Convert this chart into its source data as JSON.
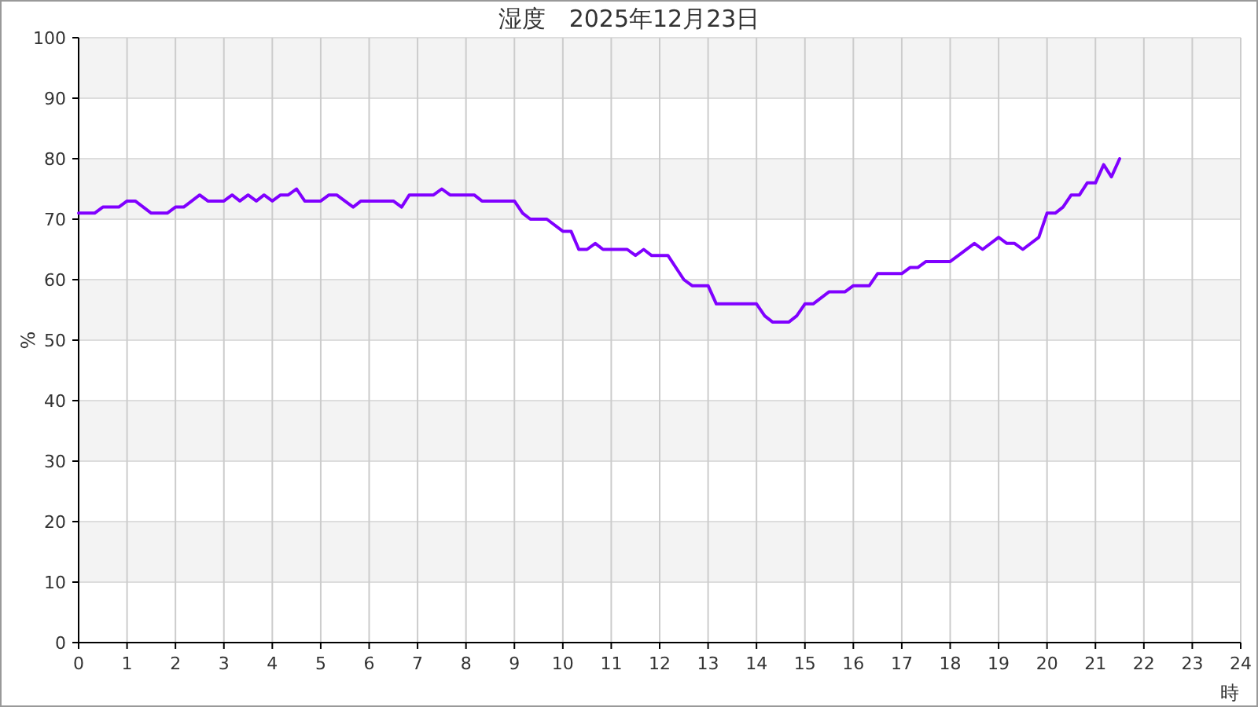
{
  "chart_data": {
    "type": "line",
    "title": "湿度　2025年12月23日",
    "xlabel": "時",
    "ylabel": "%",
    "x": [
      0,
      0.33,
      0.5,
      0.83,
      1,
      1.17,
      1.5,
      1.83,
      2,
      2.17,
      2.5,
      2.67,
      3,
      3.17,
      3.33,
      3.5,
      3.67,
      3.83,
      4,
      4.17,
      4.33,
      4.5,
      4.67,
      5,
      5.17,
      5.33,
      5.67,
      5.83,
      6.5,
      6.67,
      6.83,
      7.33,
      7.5,
      7.67,
      8.17,
      8.33,
      9,
      9.17,
      9.33,
      9.67,
      10,
      10.17,
      10.33,
      10.5,
      10.67,
      10.83,
      11.33,
      11.5,
      11.67,
      11.83,
      12.17,
      12.5,
      12.67,
      13,
      13.17,
      14,
      14.17,
      14.33,
      14.67,
      14.83,
      15,
      15.17,
      15.5,
      15.83,
      16,
      16.33,
      16.5,
      17,
      17.17,
      17.33,
      17.5,
      18,
      18.17,
      18.5,
      18.67,
      19,
      19.17,
      19.33,
      19.5,
      19.83,
      20,
      20.17,
      20.33,
      20.5,
      20.67,
      20.83,
      21,
      21.17,
      21.33,
      21.5
    ],
    "series": [
      {
        "color": "#8000ff",
        "values": [
          71,
          71,
          72,
          72,
          73,
          73,
          71,
          71,
          72,
          72,
          74,
          73,
          73,
          74,
          73,
          74,
          73,
          74,
          73,
          74,
          74,
          75,
          73,
          73,
          74,
          74,
          72,
          73,
          73,
          72,
          74,
          74,
          75,
          74,
          74,
          73,
          73,
          71,
          70,
          70,
          68,
          68,
          65,
          65,
          66,
          65,
          65,
          64,
          65,
          64,
          64,
          60,
          59,
          59,
          56,
          56,
          54,
          53,
          53,
          54,
          56,
          56,
          58,
          58,
          59,
          59,
          61,
          61,
          62,
          62,
          63,
          63,
          64,
          66,
          65,
          67,
          66,
          66,
          65,
          67,
          71,
          71,
          72,
          74,
          74,
          76,
          76,
          79,
          77,
          80
        ]
      }
    ],
    "xlim": [
      0,
      24
    ],
    "xticks": [
      0,
      1,
      2,
      3,
      4,
      5,
      6,
      7,
      8,
      9,
      10,
      11,
      12,
      13,
      14,
      15,
      16,
      17,
      18,
      19,
      20,
      21,
      22,
      23,
      24
    ],
    "ylim": [
      0,
      100
    ],
    "yticks": [
      0,
      10,
      20,
      30,
      40,
      50,
      60,
      70,
      80,
      90,
      100
    ],
    "grid": true,
    "marker": "none",
    "line_style": "solid"
  }
}
